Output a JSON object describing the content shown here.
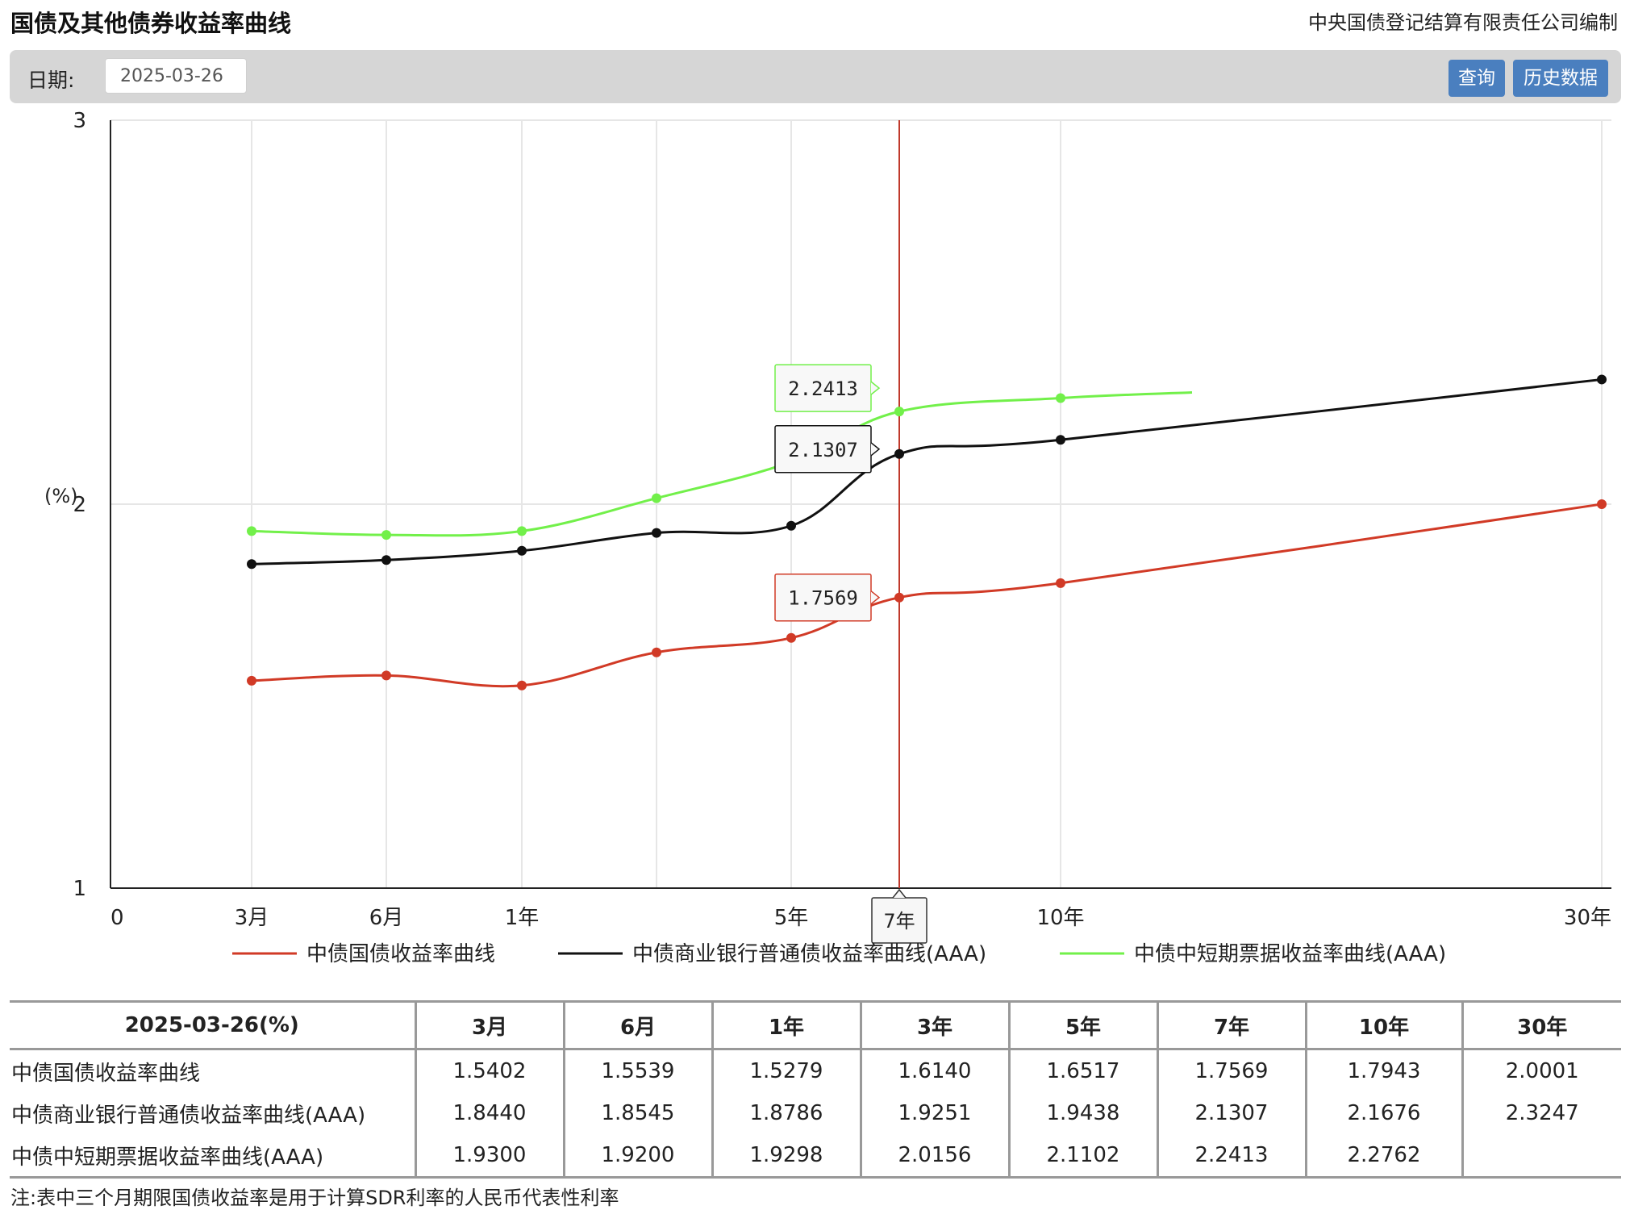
{
  "header": {
    "title": "国债及其他债券收益率曲线",
    "publisher": "中央国债登记结算有限责任公司编制"
  },
  "toolbar": {
    "date_label": "日期:",
    "date_value": "2025-03-26",
    "query_label": "查询",
    "history_label": "历史数据"
  },
  "colors": {
    "treasury": "#d13a26",
    "bank": "#111111",
    "cp": "#72f04a",
    "crosshair": "#c0392b"
  },
  "chart_data": {
    "type": "line",
    "ylabel": "(%)",
    "ylim": [
      1,
      3
    ],
    "yticks": [
      "1",
      "2",
      "3"
    ],
    "xlim": [
      0,
      30
    ],
    "xticks": [
      {
        "x": 0,
        "label": "0"
      },
      {
        "x": 0.25,
        "label": "3月"
      },
      {
        "x": 0.5,
        "label": "6月"
      },
      {
        "x": 1,
        "label": "1年"
      },
      {
        "x": 5,
        "label": "5年"
      },
      {
        "x": 10,
        "label": "10年"
      },
      {
        "x": 30,
        "label": "30年"
      }
    ],
    "crosshair": {
      "x": 7,
      "label": "7年"
    },
    "series": [
      {
        "name": "中债国债收益率曲线",
        "color": "#d13a26",
        "points": [
          {
            "x": 0.25,
            "y": 1.5402
          },
          {
            "x": 0.5,
            "y": 1.5539
          },
          {
            "x": 1,
            "y": 1.5279
          },
          {
            "x": 3,
            "y": 1.614
          },
          {
            "x": 5,
            "y": 1.6517
          },
          {
            "x": 7,
            "y": 1.7569
          },
          {
            "x": 10,
            "y": 1.7943
          },
          {
            "x": 30,
            "y": 2.0001
          }
        ],
        "tooltip": "1.7569"
      },
      {
        "name": "中债商业银行普通债收益率曲线(AAA)",
        "color": "#111111",
        "points": [
          {
            "x": 0.25,
            "y": 1.844
          },
          {
            "x": 0.5,
            "y": 1.8545
          },
          {
            "x": 1,
            "y": 1.8786
          },
          {
            "x": 3,
            "y": 1.9251
          },
          {
            "x": 5,
            "y": 1.9438
          },
          {
            "x": 7,
            "y": 2.1307
          },
          {
            "x": 10,
            "y": 2.1676
          },
          {
            "x": 30,
            "y": 2.3247
          }
        ],
        "tooltip": "2.1307"
      },
      {
        "name": "中债中短期票据收益率曲线(AAA)",
        "color": "#72f04a",
        "points": [
          {
            "x": 0.25,
            "y": 1.93
          },
          {
            "x": 0.5,
            "y": 1.92
          },
          {
            "x": 1,
            "y": 1.9298
          },
          {
            "x": 3,
            "y": 2.0156
          },
          {
            "x": 5,
            "y": 2.1102
          },
          {
            "x": 7,
            "y": 2.2413
          },
          {
            "x": 10,
            "y": 2.2762
          }
        ],
        "tooltip": "2.2413"
      }
    ]
  },
  "table": {
    "header": [
      "2025-03-26(%)",
      "3月",
      "6月",
      "1年",
      "3年",
      "5年",
      "7年",
      "10年",
      "30年"
    ],
    "rows": [
      {
        "name": "中债国债收益率曲线",
        "values": [
          "1.5402",
          "1.5539",
          "1.5279",
          "1.6140",
          "1.6517",
          "1.7569",
          "1.7943",
          "2.0001"
        ]
      },
      {
        "name": "中债商业银行普通债收益率曲线(AAA)",
        "values": [
          "1.8440",
          "1.8545",
          "1.8786",
          "1.9251",
          "1.9438",
          "2.1307",
          "2.1676",
          "2.3247"
        ]
      },
      {
        "name": "中债中短期票据收益率曲线(AAA)",
        "values": [
          "1.9300",
          "1.9200",
          "1.9298",
          "2.0156",
          "2.1102",
          "2.2413",
          "2.2762",
          ""
        ]
      }
    ]
  },
  "note": "注:表中三个月期限国债收益率是用于计算SDR利率的人民币代表性利率"
}
